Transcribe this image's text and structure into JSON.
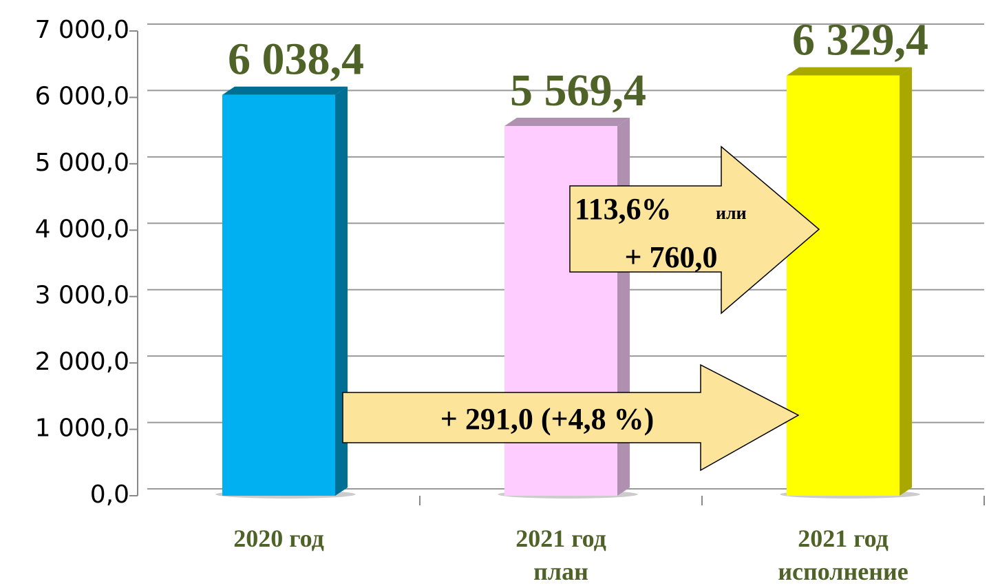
{
  "chart_data": {
    "type": "bar",
    "categories": [
      "2020 год",
      "2021 год план",
      "2021 год исполнение"
    ],
    "values": [
      6038.4,
      5569.4,
      6329.4
    ],
    "value_labels": [
      "6 038,4",
      "5 569,4",
      "6 329,4"
    ],
    "colors": [
      "#00b0f0",
      "#ffccff",
      "#ffff00"
    ],
    "side_colors": [
      "#006f94",
      "#b090b0",
      "#a8a800"
    ],
    "ylim": [
      0,
      7000
    ],
    "yticks": [
      {
        "value": 0,
        "label": "0,0"
      },
      {
        "value": 1000,
        "label": "1 000,0"
      },
      {
        "value": 2000,
        "label": "2 000,0"
      },
      {
        "value": 3000,
        "label": "3 000,0"
      },
      {
        "value": 4000,
        "label": "4 000,0"
      },
      {
        "value": 5000,
        "label": "5 000,0"
      },
      {
        "value": 6000,
        "label": "6 000,0"
      },
      {
        "value": 7000,
        "label": "7 000,0"
      }
    ],
    "grid": true,
    "annotations": {
      "upper_percent": "113,6%",
      "upper_or": "или",
      "upper_delta": "+ 760,0",
      "lower": "+ 291,0 (+4,8 %)"
    }
  }
}
